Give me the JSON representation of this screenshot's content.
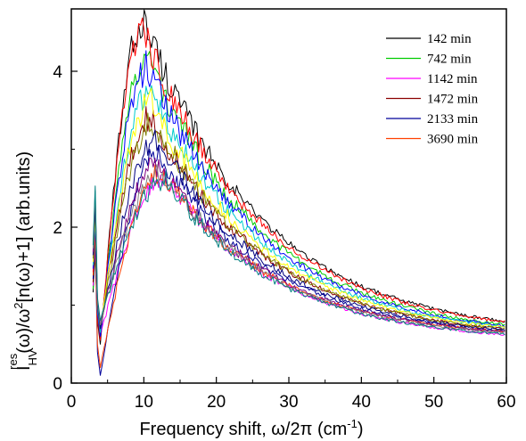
{
  "chart_data": {
    "type": "line",
    "xlabel": {
      "main": "Frequency shift, ω/2π  (cm",
      "sup": "-1",
      "end": ")"
    },
    "ylabel": {
      "I": "I",
      "sub": "HV",
      "sup": "res",
      "mid": "(ω)/ω",
      "sup2": "2",
      "end": "[n(ω)+1]  (arb.units)"
    },
    "xlim": [
      0,
      60
    ],
    "ylim": [
      0,
      4.8
    ],
    "x_ticks": [
      "0",
      "10",
      "20",
      "30",
      "40",
      "50",
      "60"
    ],
    "y_ticks": [
      "0",
      "2",
      "4"
    ],
    "legend_position": "top-right",
    "series": [
      {
        "name": "142 min",
        "color": "#000000",
        "peak_y": 4.65,
        "peak_x": 10,
        "dip_y": 0.5,
        "end_y": 0.6
      },
      {
        "name": "742 min",
        "color": "#00cc00",
        "peak_y": 4.2,
        "peak_x": 10.5,
        "dip_y": 0.6,
        "end_y": 0.58
      },
      {
        "name": "1142 min",
        "color": "#ff00ff",
        "peak_y": 2.65,
        "peak_x": 13,
        "dip_y": 0.6,
        "end_y": 0.52
      },
      {
        "name": "1472 min",
        "color": "#8b0000",
        "peak_y": 3.4,
        "peak_x": 11,
        "dip_y": 0.7,
        "end_y": 0.56
      },
      {
        "name": "2133 min",
        "color": "#000099",
        "peak_y": 2.95,
        "peak_x": 12,
        "dip_y": 0.1,
        "end_y": 0.55
      },
      {
        "name": "3690 min",
        "color": "#ff4000",
        "peak_y": 2.7,
        "peak_x": 12.5,
        "dip_y": 0.2,
        "end_y": 0.56
      },
      {
        "name": "",
        "color": "#ff0000",
        "peak_y": 4.5,
        "peak_x": 10,
        "dip_y": 0.55,
        "end_y": 0.6
      },
      {
        "name": "",
        "color": "#0000ff",
        "peak_y": 4.05,
        "peak_x": 10.5,
        "dip_y": 0.6,
        "end_y": 0.57
      },
      {
        "name": "",
        "color": "#00cccc",
        "peak_y": 3.75,
        "peak_x": 11,
        "dip_y": 0.65,
        "end_y": 0.57
      },
      {
        "name": "",
        "color": "#ffff00",
        "peak_y": 3.6,
        "peak_x": 11,
        "dip_y": 0.7,
        "end_y": 0.57
      },
      {
        "name": "",
        "color": "#808000",
        "peak_y": 3.35,
        "peak_x": 11.5,
        "dip_y": 0.7,
        "end_y": 0.56
      },
      {
        "name": "",
        "color": "#000080",
        "peak_y": 3.1,
        "peak_x": 12,
        "dip_y": 0.7,
        "end_y": 0.56
      },
      {
        "name": "",
        "color": "#800080",
        "peak_y": 2.8,
        "peak_x": 12,
        "dip_y": 0.75,
        "end_y": 0.55
      },
      {
        "name": "",
        "color": "#808080",
        "peak_y": 2.72,
        "peak_x": 12.5,
        "dip_y": 0.75,
        "end_y": 0.54
      },
      {
        "name": "",
        "color": "#008080",
        "peak_y": 2.6,
        "peak_x": 13,
        "dip_y": 0.8,
        "end_y": 0.53
      }
    ]
  }
}
